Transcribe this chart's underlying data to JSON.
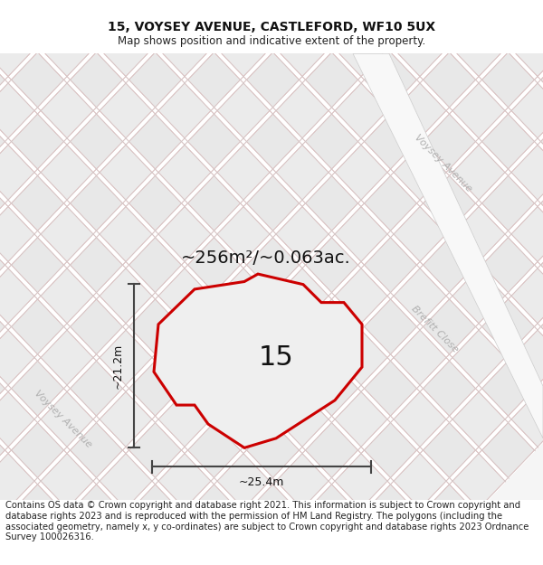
{
  "title_line1": "15, VOYSEY AVENUE, CASTLEFORD, WF10 5UX",
  "title_line2": "Map shows position and indicative extent of the property.",
  "footer_text": "Contains OS data © Crown copyright and database right 2021. This information is subject to Crown copyright and database rights 2023 and is reproduced with the permission of HM Land Registry. The polygons (including the associated geometry, namely x, y co-ordinates) are subject to Crown copyright and database rights 2023 Ordnance Survey 100026316.",
  "area_label": "~256m²/~0.063ac.",
  "plot_number": "15",
  "dim_width": "~25.4m",
  "dim_height": "~21.2m",
  "street_label_voysey1": "Voysey Avenue",
  "street_label_voysey2": "Voysey Avenue",
  "street_label_brefitt": "Brefitt Close",
  "bg_color": "#ffffff",
  "map_bg": "#ffffff",
  "block_light": "#ebebeb",
  "block_dark": "#d8d8d8",
  "road_line_red": "#f5c8c8",
  "road_line_grey": "#d0d0d0",
  "plot_fill": "#efefef",
  "plot_edge": "#cc0000",
  "dim_line_color": "#444444",
  "title_fontsize": 10,
  "subtitle_fontsize": 8.5,
  "footer_fontsize": 7.2,
  "area_fontsize": 14,
  "plot_num_fontsize": 22,
  "street_fontsize": 8,
  "dim_fontsize": 9
}
